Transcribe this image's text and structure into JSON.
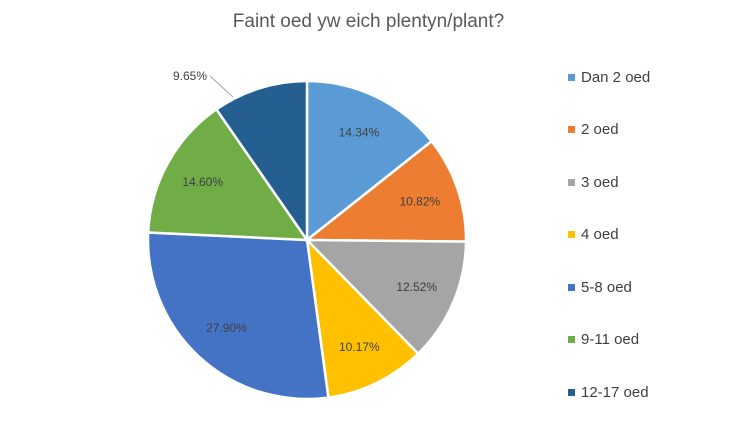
{
  "chart_data": {
    "type": "pie",
    "title": "Faint oed yw eich plentyn/plant?",
    "legend_position": "right",
    "series": [
      {
        "name": "Dan 2 oed",
        "value": 14.34,
        "label": "14.34%",
        "color": "#5b9bd5"
      },
      {
        "name": "2 oed",
        "value": 10.82,
        "label": "10.82%",
        "color": "#ed7d31"
      },
      {
        "name": "3 oed",
        "value": 12.52,
        "label": "12.52%",
        "color": "#a5a5a5"
      },
      {
        "name": "4 oed",
        "value": 10.17,
        "label": "10.17%",
        "color": "#ffc000"
      },
      {
        "name": "5-8 oed",
        "value": 27.9,
        "label": "27.90%",
        "color": "#4472c4"
      },
      {
        "name": "9-11 oed",
        "value": 14.6,
        "label": "14.60%",
        "color": "#70ad47"
      },
      {
        "name": "12-17 oed",
        "value": 9.65,
        "label": "9.65%",
        "color": "#255e91"
      }
    ]
  }
}
